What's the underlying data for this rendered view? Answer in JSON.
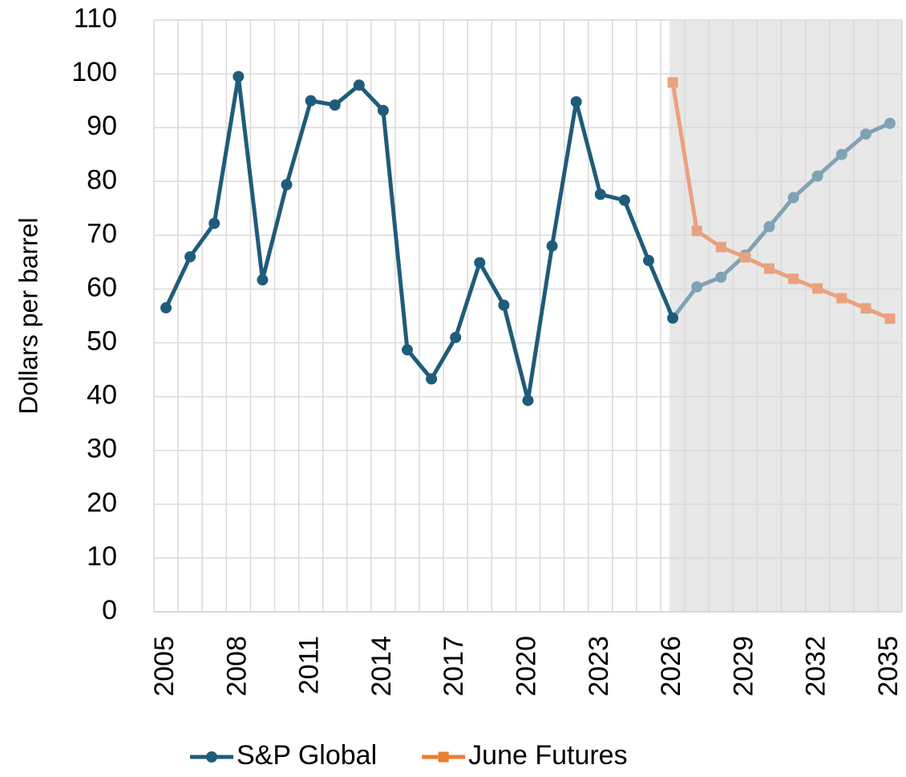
{
  "chart_data": {
    "type": "line",
    "y_label": "Dollars per barrel",
    "x": [
      2005,
      2006,
      2007,
      2008,
      2009,
      2010,
      2011,
      2012,
      2013,
      2014,
      2015,
      2016,
      2017,
      2018,
      2019,
      2020,
      2021,
      2022,
      2023,
      2024,
      2025,
      2026,
      2027,
      2028,
      2029,
      2030,
      2031,
      2032,
      2033,
      2034,
      2035
    ],
    "xlim": [
      2004.5,
      2035.5
    ],
    "xticks": [
      2005,
      2008,
      2011,
      2014,
      2017,
      2020,
      2023,
      2026,
      2029,
      2032,
      2035
    ],
    "ylim": [
      0,
      110
    ],
    "yticks": [
      0,
      10,
      20,
      30,
      40,
      50,
      60,
      70,
      80,
      90,
      100,
      110
    ],
    "grid": true,
    "legend": "bottom",
    "forecast": {
      "from": 2026,
      "color": "#e8e8e8"
    },
    "series": [
      {
        "name": "S&P Global",
        "color": "#1f5c7a",
        "forecast_color": "#7fa3b5",
        "marker": "circle",
        "values": [
          56.5,
          66,
          72.2,
          99.5,
          61.7,
          79.4,
          95,
          94.2,
          97.9,
          93.2,
          48.7,
          43.3,
          51,
          64.9,
          57,
          39.3,
          68,
          94.8,
          77.6,
          76.5,
          65.3,
          54.6,
          60.4,
          62.2,
          66.3,
          71.6,
          77,
          81,
          85,
          88.8,
          90.8
        ]
      },
      {
        "name": "June Futures",
        "color": "#ed7d31",
        "forecast_color": "#e9a27f",
        "marker": "square",
        "values": [
          null,
          null,
          null,
          null,
          null,
          null,
          null,
          null,
          null,
          null,
          null,
          null,
          null,
          null,
          null,
          null,
          null,
          null,
          null,
          null,
          null,
          98.4,
          70.8,
          67.8,
          65.9,
          63.8,
          61.9,
          60.1,
          58.3,
          56.4,
          54.5
        ]
      }
    ]
  }
}
